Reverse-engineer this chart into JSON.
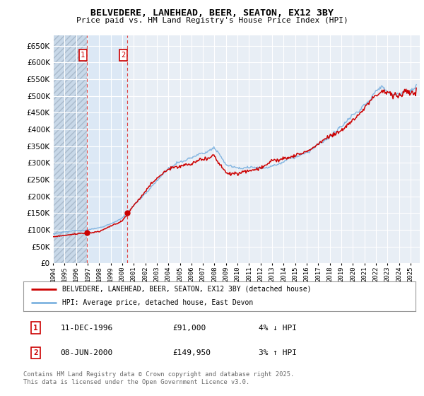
{
  "title": "BELVEDERE, LANEHEAD, BEER, SEATON, EX12 3BY",
  "subtitle": "Price paid vs. HM Land Registry's House Price Index (HPI)",
  "ylim": [
    0,
    680000
  ],
  "yticks": [
    0,
    50000,
    100000,
    150000,
    200000,
    250000,
    300000,
    350000,
    400000,
    450000,
    500000,
    550000,
    600000,
    650000
  ],
  "xlim_start": 1994.0,
  "xlim_end": 2025.8,
  "background_color": "#ffffff",
  "plot_bg_color": "#e8eef5",
  "grid_color": "#ffffff",
  "transaction1_date": 1996.95,
  "transaction1_price": 91000,
  "transaction2_date": 2000.44,
  "transaction2_price": 149950,
  "legend_label1": "BELVEDERE, LANEHEAD, BEER, SEATON, EX12 3BY (detached house)",
  "legend_label2": "HPI: Average price, detached house, East Devon",
  "footer": "Contains HM Land Registry data © Crown copyright and database right 2025.\nThis data is licensed under the Open Government Licence v3.0.",
  "table_rows": [
    {
      "num": "1",
      "date": "11-DEC-1996",
      "price": "£91,000",
      "hpi": "4% ↓ HPI"
    },
    {
      "num": "2",
      "date": "08-JUN-2000",
      "price": "£149,950",
      "hpi": "3% ↑ HPI"
    }
  ],
  "hpi_color": "#7fb3e0",
  "price_color": "#cc0000",
  "shaded_hatch_color": "#c8d8e8",
  "shaded_between_color": "#dce8f5"
}
